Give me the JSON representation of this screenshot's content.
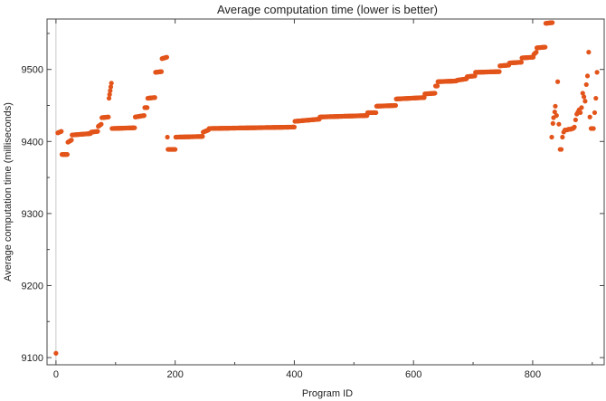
{
  "chart_data": {
    "type": "scatter",
    "title": "Average computation time (lower is better)",
    "xlabel": "Program ID",
    "ylabel": "Average computation time (milliseconds)",
    "xlim": [
      -15,
      920
    ],
    "ylim": [
      9090,
      9570
    ],
    "xticks": [
      0,
      200,
      400,
      600,
      800
    ],
    "yticks": [
      9100,
      9200,
      9300,
      9400,
      9500
    ],
    "grid": false,
    "marker_color": "#e2541a",
    "frame_color": "#444444",
    "segments": [
      {
        "x_start": 0,
        "x_end": 0,
        "y_start": 9106,
        "y_end": 9106
      },
      {
        "x_start": 3,
        "x_end": 9,
        "y_start": 9412,
        "y_end": 9414
      },
      {
        "x_start": 10,
        "x_end": 19,
        "y_start": 9382,
        "y_end": 9382
      },
      {
        "x_start": 20,
        "x_end": 26,
        "y_start": 9399,
        "y_end": 9402
      },
      {
        "x_start": 27,
        "x_end": 58,
        "y_start": 9409,
        "y_end": 9411
      },
      {
        "x_start": 59,
        "x_end": 70,
        "y_start": 9413,
        "y_end": 9414
      },
      {
        "x_start": 71,
        "x_end": 76,
        "y_start": 9421,
        "y_end": 9424
      },
      {
        "x_start": 77,
        "x_end": 88,
        "y_start": 9433,
        "y_end": 9434
      },
      {
        "x_start": 89,
        "x_end": 93,
        "y_start": 9460,
        "y_end": 9481
      },
      {
        "x_start": 94,
        "x_end": 132,
        "y_start": 9418,
        "y_end": 9419
      },
      {
        "x_start": 133,
        "x_end": 148,
        "y_start": 9434,
        "y_end": 9436
      },
      {
        "x_start": 149,
        "x_end": 153,
        "y_start": 9447,
        "y_end": 9447
      },
      {
        "x_start": 154,
        "x_end": 166,
        "y_start": 9460,
        "y_end": 9461
      },
      {
        "x_start": 167,
        "x_end": 177,
        "y_start": 9496,
        "y_end": 9497
      },
      {
        "x_start": 178,
        "x_end": 186,
        "y_start": 9515,
        "y_end": 9517
      },
      {
        "x_start": 187,
        "x_end": 187,
        "y_start": 9406,
        "y_end": 9406
      },
      {
        "x_start": 188,
        "x_end": 200,
        "y_start": 9389,
        "y_end": 9389
      },
      {
        "x_start": 201,
        "x_end": 246,
        "y_start": 9406,
        "y_end": 9407
      },
      {
        "x_start": 247,
        "x_end": 256,
        "y_start": 9413,
        "y_end": 9416
      },
      {
        "x_start": 257,
        "x_end": 400,
        "y_start": 9418,
        "y_end": 9420
      },
      {
        "x_start": 401,
        "x_end": 442,
        "y_start": 9428,
        "y_end": 9431
      },
      {
        "x_start": 443,
        "x_end": 522,
        "y_start": 9434,
        "y_end": 9436
      },
      {
        "x_start": 523,
        "x_end": 537,
        "y_start": 9440,
        "y_end": 9440
      },
      {
        "x_start": 538,
        "x_end": 570,
        "y_start": 9449,
        "y_end": 9450
      },
      {
        "x_start": 571,
        "x_end": 618,
        "y_start": 9459,
        "y_end": 9461
      },
      {
        "x_start": 619,
        "x_end": 636,
        "y_start": 9466,
        "y_end": 9467
      },
      {
        "x_start": 637,
        "x_end": 640,
        "y_start": 9477,
        "y_end": 9477
      },
      {
        "x_start": 641,
        "x_end": 672,
        "y_start": 9483,
        "y_end": 9484
      },
      {
        "x_start": 673,
        "x_end": 689,
        "y_start": 9485,
        "y_end": 9487
      },
      {
        "x_start": 690,
        "x_end": 703,
        "y_start": 9490,
        "y_end": 9491
      },
      {
        "x_start": 704,
        "x_end": 744,
        "y_start": 9496,
        "y_end": 9497
      },
      {
        "x_start": 745,
        "x_end": 760,
        "y_start": 9505,
        "y_end": 9506
      },
      {
        "x_start": 761,
        "x_end": 781,
        "y_start": 9509,
        "y_end": 9510
      },
      {
        "x_start": 782,
        "x_end": 801,
        "y_start": 9516,
        "y_end": 9517
      },
      {
        "x_start": 802,
        "x_end": 806,
        "y_start": 9521,
        "y_end": 9524
      },
      {
        "x_start": 807,
        "x_end": 821,
        "y_start": 9530,
        "y_end": 9531
      },
      {
        "x_start": 822,
        "x_end": 833,
        "y_start": 9564,
        "y_end": 9565
      }
    ],
    "points": [
      [
        832,
        9406
      ],
      [
        834,
        9425
      ],
      [
        835,
        9433
      ],
      [
        837,
        9441
      ],
      [
        838,
        9449
      ],
      [
        840,
        9436
      ],
      [
        842,
        9483
      ],
      [
        844,
        9424
      ],
      [
        846,
        9389
      ],
      [
        848,
        9389
      ],
      [
        850,
        9406
      ],
      [
        852,
        9413
      ],
      [
        854,
        9416
      ],
      [
        856,
        9416
      ],
      [
        858,
        9416
      ],
      [
        860,
        9417
      ],
      [
        862,
        9417
      ],
      [
        864,
        9417
      ],
      [
        866,
        9418
      ],
      [
        868,
        9418
      ],
      [
        870,
        9420
      ],
      [
        872,
        9430
      ],
      [
        874,
        9438
      ],
      [
        876,
        9441
      ],
      [
        878,
        9444
      ],
      [
        880,
        9440
      ],
      [
        882,
        9447
      ],
      [
        884,
        9467
      ],
      [
        886,
        9462
      ],
      [
        888,
        9456
      ],
      [
        890,
        9479
      ],
      [
        892,
        9491
      ],
      [
        894,
        9524
      ],
      [
        896,
        9434
      ],
      [
        898,
        9418
      ],
      [
        900,
        9418
      ],
      [
        902,
        9418
      ],
      [
        904,
        9440
      ],
      [
        906,
        9460
      ],
      [
        908,
        9496
      ]
    ]
  }
}
